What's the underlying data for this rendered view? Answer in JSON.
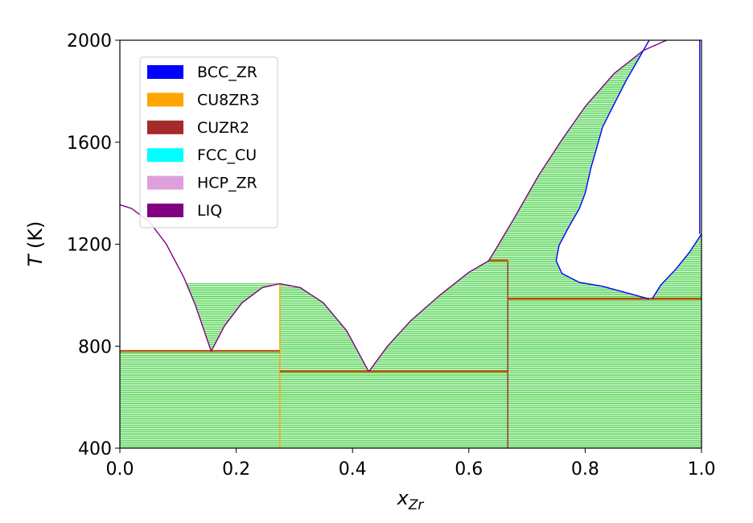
{
  "chart_data": {
    "type": "phase-diagram",
    "title": "",
    "xlabel": {
      "main": "x",
      "sub": "Zr"
    },
    "ylabel": {
      "main": "T",
      "rest": " (K)"
    },
    "xlim": [
      0.0,
      1.0
    ],
    "ylim": [
      400,
      2000
    ],
    "xticks": [
      0.0,
      0.2,
      0.4,
      0.6,
      0.8,
      1.0
    ],
    "xtick_labels": [
      "0.0",
      "0.2",
      "0.4",
      "0.6",
      "0.8",
      "1.0"
    ],
    "yticks": [
      400,
      800,
      1200,
      1600,
      2000
    ],
    "ytick_labels": [
      "400",
      "800",
      "1200",
      "1600",
      "2000"
    ],
    "legend_position": "upper-left",
    "legend": [
      {
        "name": "BCC_ZR",
        "color": "#0000ff"
      },
      {
        "name": "CU8ZR3",
        "color": "#ffa500"
      },
      {
        "name": "CUZR2",
        "color": "#a52a2a"
      },
      {
        "name": "FCC_CU",
        "color": "#00ffff"
      },
      {
        "name": "HCP_ZR",
        "color": "#dda0dd"
      },
      {
        "name": "LIQ",
        "color": "#800080"
      }
    ],
    "tie_line_color": "#33cc33",
    "tie_line_spacing_K": 5,
    "invariants": [
      {
        "x1": 0.0,
        "x2": 0.275,
        "T": 780
      },
      {
        "x1": 0.275,
        "x2": 0.667,
        "T": 700
      },
      {
        "x1": 0.634,
        "x2": 0.667,
        "T": 1135
      },
      {
        "x1": 0.667,
        "x2": 1.0,
        "T": 985
      }
    ],
    "compound_lines": [
      {
        "x": 0.275,
        "T1": 400,
        "T2": 1045,
        "color": "#ffa500"
      },
      {
        "x": 0.667,
        "T1": 400,
        "T2": 1135,
        "color": "#a52a2a"
      }
    ],
    "boundaries": [
      {
        "phase": "LIQ",
        "color": "#800080",
        "points": [
          [
            0.0,
            1355
          ],
          [
            0.02,
            1340
          ],
          [
            0.05,
            1290
          ],
          [
            0.08,
            1200
          ],
          [
            0.11,
            1070
          ],
          [
            0.13,
            960
          ],
          [
            0.145,
            860
          ],
          [
            0.157,
            780
          ]
        ]
      },
      {
        "phase": "LIQ",
        "color": "#800080",
        "points": [
          [
            0.157,
            780
          ],
          [
            0.18,
            880
          ],
          [
            0.21,
            970
          ],
          [
            0.245,
            1030
          ],
          [
            0.275,
            1045
          ],
          [
            0.31,
            1030
          ],
          [
            0.35,
            970
          ],
          [
            0.39,
            860
          ],
          [
            0.428,
            700
          ]
        ]
      },
      {
        "phase": "LIQ",
        "color": "#800080",
        "points": [
          [
            0.428,
            700
          ],
          [
            0.46,
            800
          ],
          [
            0.5,
            900
          ],
          [
            0.55,
            1000
          ],
          [
            0.6,
            1090
          ],
          [
            0.634,
            1135
          ]
        ]
      },
      {
        "phase": "LIQ",
        "color": "#800080",
        "points": [
          [
            0.634,
            1135
          ],
          [
            0.65,
            1195
          ],
          [
            0.68,
            1310
          ],
          [
            0.72,
            1470
          ],
          [
            0.76,
            1610
          ],
          [
            0.8,
            1740
          ],
          [
            0.85,
            1870
          ],
          [
            0.9,
            1960
          ],
          [
            0.94,
            2000
          ]
        ]
      },
      {
        "phase": "BCC_ZR",
        "color": "#0000ff",
        "points": [
          [
            0.75,
            1135
          ],
          [
            0.755,
            1195
          ],
          [
            0.77,
            1260
          ],
          [
            0.79,
            1340
          ],
          [
            0.8,
            1400
          ],
          [
            0.81,
            1500
          ],
          [
            0.82,
            1580
          ],
          [
            0.83,
            1660
          ],
          [
            0.85,
            1750
          ],
          [
            0.87,
            1840
          ],
          [
            0.89,
            1920
          ],
          [
            0.91,
            2000
          ]
        ]
      },
      {
        "phase": "BCC_ZR",
        "color": "#0000ff",
        "points": [
          [
            0.75,
            1135
          ],
          [
            0.76,
            1085
          ],
          [
            0.79,
            1050
          ],
          [
            0.83,
            1035
          ],
          [
            0.87,
            1010
          ],
          [
            0.91,
            985
          ]
        ]
      },
      {
        "phase": "BCC_ZR",
        "color": "#0000ff",
        "points": [
          [
            0.915,
            985
          ],
          [
            0.93,
            1040
          ],
          [
            0.955,
            1100
          ],
          [
            0.98,
            1170
          ],
          [
            1.0,
            1240
          ]
        ]
      },
      {
        "phase": "BCC_ZR",
        "color": "#0000ff",
        "points": [
          [
            0.997,
            1240
          ],
          [
            0.997,
            2000
          ]
        ]
      }
    ],
    "tie_regions": [
      {
        "T": [
          400,
          780
        ],
        "x": [
          [
            0.0,
            0.275
          ]
        ]
      },
      {
        "T": [
          780,
          1045
        ],
        "x": [
          [
            "LIQ_LEFT",
            "LIQ_A_LEFT"
          ],
          [
            "LIQ_A_RIGHT",
            0.275
          ]
        ]
      },
      {
        "T": [
          400,
          700
        ],
        "x": [
          [
            0.275,
            0.667
          ]
        ]
      },
      {
        "T": [
          700,
          1045
        ],
        "x": [
          [
            0.275,
            "LIQ_B_LEFT"
          ]
        ]
      },
      {
        "T": [
          700,
          1135
        ],
        "x": [
          [
            "LIQ_C",
            0.667
          ]
        ]
      },
      {
        "T": [
          400,
          985
        ],
        "x": [
          [
            0.667,
            1.0
          ]
        ]
      },
      {
        "T": [
          985,
          1135
        ],
        "x": [
          [
            0.667,
            "BCC_LOW"
          ]
        ]
      },
      {
        "T": [
          985,
          1240
        ],
        "x": [
          [
            "BCC_HIGH",
            1.0
          ]
        ]
      },
      {
        "T": [
          1135,
          2000
        ],
        "x": [
          [
            "LIQ_D",
            "BCC_UP"
          ]
        ]
      }
    ]
  }
}
